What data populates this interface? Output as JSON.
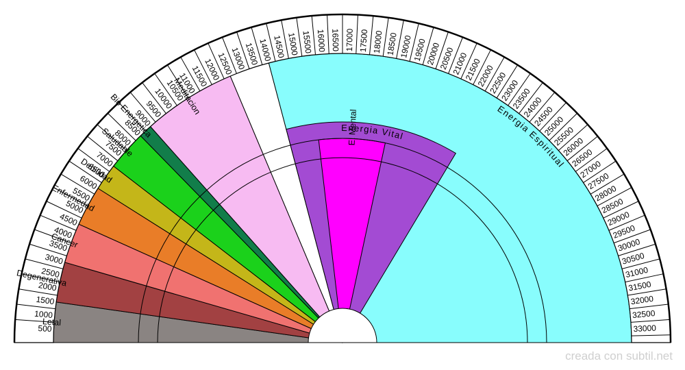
{
  "scale": {
    "min": 0,
    "max": 33500,
    "ticks": [
      500,
      1000,
      1500,
      2000,
      2500,
      3000,
      3500,
      4000,
      4500,
      5000,
      5500,
      6000,
      6500,
      7000,
      7500,
      8000,
      8500,
      9000,
      9500,
      10000,
      10500,
      11000,
      11500,
      12000,
      12500,
      13000,
      13500,
      14000,
      14500,
      15000,
      15500,
      16000,
      16500,
      17000,
      17500,
      18000,
      18500,
      19000,
      19500,
      20000,
      20500,
      21000,
      21500,
      22000,
      22500,
      23000,
      23500,
      24000,
      24500,
      25000,
      25500,
      26000,
      26500,
      27000,
      27500,
      28000,
      28500,
      29000,
      29500,
      30000,
      30500,
      31000,
      31500,
      32000,
      32500,
      33000
    ]
  },
  "zones": [
    {
      "label": "Letal",
      "from": 0,
      "to": 1500,
      "color": "#8a8482"
    },
    {
      "label": "Degenerativa",
      "from": 1500,
      "to": 3000,
      "color": "#a24142"
    },
    {
      "label": "Cancer",
      "from": 3000,
      "to": 4500,
      "color": "#f07270"
    },
    {
      "label": "Enfermedad",
      "from": 4500,
      "to": 6000,
      "color": "#e97d28"
    },
    {
      "label": "Debilidad",
      "from": 6000,
      "to": 7000,
      "color": "#c4b619"
    },
    {
      "label": "Saludable",
      "from": 7000,
      "to": 8500,
      "color": "#1bd11b"
    },
    {
      "label": "Bio Energetica",
      "from": 8500,
      "to": 9000,
      "color": "#127d4a"
    },
    {
      "label": "Meditacion",
      "from": 9000,
      "to": 12500,
      "color": "#f7bbf2"
    },
    {
      "label": "",
      "from": 12500,
      "to": 14000,
      "color": "#ffffff"
    },
    {
      "label": "Energia Espiritual",
      "from": 14000,
      "to": 33500,
      "color": "#88fdfd"
    }
  ],
  "vital": {
    "label": "Energia Vital",
    "from": 14000,
    "to": 22500,
    "color": "#a34bd3"
  },
  "mental": {
    "label": "E. Mental",
    "from": 15500,
    "to": 19000,
    "color": "#ff00ff"
  },
  "credit": "creada con subtil.net"
}
